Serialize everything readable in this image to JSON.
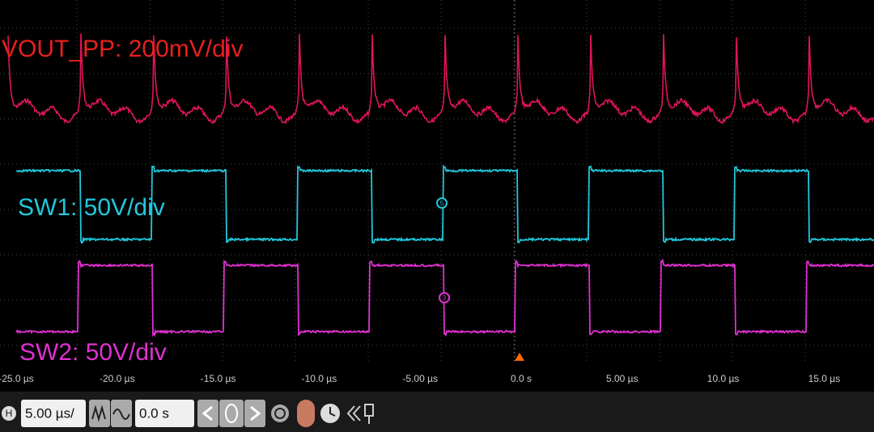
{
  "labels": {
    "vout": "VOUT_PP: 200mV/div",
    "sw1": "SW1: 50V/div",
    "sw2": "SW2: 50V/div"
  },
  "markers": {
    "sw1": "5",
    "sw2": "3"
  },
  "x_axis": {
    "ticks": [
      "-25.0 µs",
      "-20.0 µs",
      "-15.0 µs",
      "-10.0 µs",
      "-5.00 µs",
      "0.0 s",
      "5.00 µs",
      "10.0 µs",
      "15.0 µs"
    ]
  },
  "toolbar": {
    "h_button": "H",
    "timebase": "5.00 µs/",
    "position": "0.0 s"
  }
}
